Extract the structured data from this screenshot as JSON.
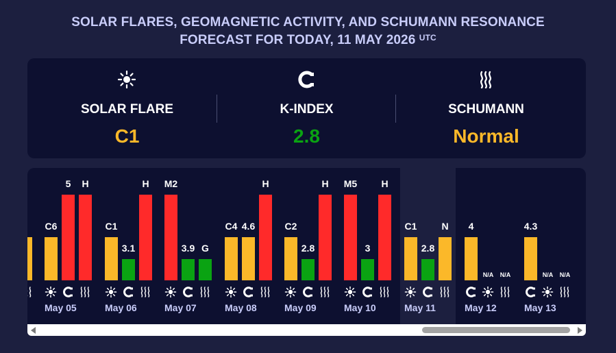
{
  "header": {
    "title_line1": "SOLAR FLARES, GEOMAGNETIC ACTIVITY, AND SCHUMANN RESONANCE",
    "title_line2": "FORECAST FOR TODAY, 11 MAY 2026",
    "title_sup": "UTC"
  },
  "summary": [
    {
      "icon": "sun-icon",
      "label": "SOLAR FLARE",
      "value": "C1",
      "color": "#fbb829"
    },
    {
      "icon": "magnet-icon",
      "label": "K-INDEX",
      "value": "2.8",
      "color": "#0aa312"
    },
    {
      "icon": "waves-icon",
      "label": "SCHUMANN",
      "value": "Normal",
      "color": "#fbb829"
    }
  ],
  "colors": {
    "yellow": "#fbb829",
    "red": "#ff2a2a",
    "green": "#0aa312"
  },
  "bar_levels": {
    "high": 1.0,
    "mid": 0.5,
    "low": 0.25
  },
  "days": [
    {
      "date": "",
      "partial": true,
      "icons": [
        "waves-icon"
      ],
      "bars": [
        {
          "label": "",
          "color": "yellow",
          "level": "mid"
        }
      ]
    },
    {
      "date": "May 05",
      "icons": [
        "sun-icon",
        "magnet-icon",
        "waves-icon"
      ],
      "bars": [
        {
          "label": "C6",
          "color": "yellow",
          "level": "mid"
        },
        {
          "label": "5",
          "color": "red",
          "level": "high"
        },
        {
          "label": "H",
          "color": "red",
          "level": "high"
        }
      ]
    },
    {
      "date": "May 06",
      "icons": [
        "sun-icon",
        "magnet-icon",
        "waves-icon"
      ],
      "bars": [
        {
          "label": "C1",
          "color": "yellow",
          "level": "mid"
        },
        {
          "label": "3.1",
          "color": "green",
          "level": "low"
        },
        {
          "label": "H",
          "color": "red",
          "level": "high"
        }
      ]
    },
    {
      "date": "May 07",
      "icons": [
        "sun-icon",
        "magnet-icon",
        "waves-icon"
      ],
      "bars": [
        {
          "label": "M2",
          "color": "red",
          "level": "high"
        },
        {
          "label": "3.9",
          "color": "green",
          "level": "low"
        },
        {
          "label": "G",
          "color": "green",
          "level": "low"
        }
      ]
    },
    {
      "date": "May 08",
      "icons": [
        "sun-icon",
        "magnet-icon",
        "waves-icon"
      ],
      "bars": [
        {
          "label": "C4",
          "color": "yellow",
          "level": "mid"
        },
        {
          "label": "4.6",
          "color": "yellow",
          "level": "mid"
        },
        {
          "label": "H",
          "color": "red",
          "level": "high"
        }
      ]
    },
    {
      "date": "May 09",
      "icons": [
        "sun-icon",
        "magnet-icon",
        "waves-icon"
      ],
      "bars": [
        {
          "label": "C2",
          "color": "yellow",
          "level": "mid"
        },
        {
          "label": "2.8",
          "color": "green",
          "level": "low"
        },
        {
          "label": "H",
          "color": "red",
          "level": "high"
        }
      ]
    },
    {
      "date": "May 10",
      "icons": [
        "sun-icon",
        "magnet-icon",
        "waves-icon"
      ],
      "bars": [
        {
          "label": "M5",
          "color": "red",
          "level": "high"
        },
        {
          "label": "3",
          "color": "green",
          "level": "low"
        },
        {
          "label": "H",
          "color": "red",
          "level": "high"
        }
      ]
    },
    {
      "date": "May 11",
      "today": true,
      "icons": [
        "sun-icon",
        "magnet-icon",
        "waves-icon"
      ],
      "bars": [
        {
          "label": "C1",
          "color": "yellow",
          "level": "mid"
        },
        {
          "label": "2.8",
          "color": "green",
          "level": "low"
        },
        {
          "label": "N",
          "color": "yellow",
          "level": "mid"
        }
      ]
    },
    {
      "date": "May 12",
      "icons": [
        "magnet-icon",
        "sun-icon",
        "waves-icon"
      ],
      "bars": [
        {
          "label": "4",
          "color": "yellow",
          "level": "mid"
        },
        {
          "label": "N/A",
          "color": "none",
          "level": "none"
        },
        {
          "label": "N/A",
          "color": "none",
          "level": "none"
        }
      ]
    },
    {
      "date": "May 13",
      "icons": [
        "magnet-icon",
        "sun-icon",
        "waves-icon"
      ],
      "bars": [
        {
          "label": "4.3",
          "color": "yellow",
          "level": "mid"
        },
        {
          "label": "N/A",
          "color": "none",
          "level": "none"
        },
        {
          "label": "N/A",
          "color": "none",
          "level": "none"
        }
      ]
    }
  ]
}
